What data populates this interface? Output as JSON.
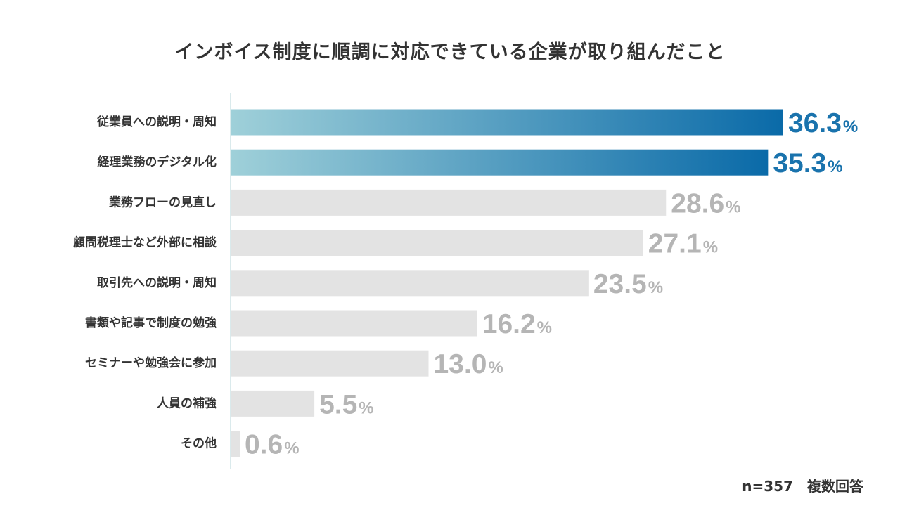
{
  "chart_data": {
    "type": "bar",
    "orientation": "horizontal",
    "title": "インボイス制度に順調に対応できている企業が取り組んだこと",
    "categories": [
      "従業員への説明・周知",
      "経理業務のデジタル化",
      "業務フローの見直し",
      "顧問税理士など外部に相談",
      "取引先への説明・周知",
      "書類や記事で制度の勉強",
      "セミナーや勉強会に参加",
      "人員の補強",
      "その他"
    ],
    "values": [
      36.3,
      35.3,
      28.6,
      27.1,
      23.5,
      16.2,
      13.0,
      5.5,
      0.6
    ],
    "value_labels": [
      "36.3",
      "35.3",
      "28.6",
      "27.1",
      "23.5",
      "16.2",
      "13.0",
      "5.5",
      "0.6"
    ],
    "value_suffix": "%",
    "highlighted": [
      true,
      true,
      false,
      false,
      false,
      false,
      false,
      false,
      false
    ],
    "xlim": [
      0,
      36.3
    ],
    "xlabel": "",
    "ylabel": "",
    "grid": false,
    "legend": "none",
    "colors": {
      "highlight_start": "#9fd0d9",
      "highlight_end": "#0a6aa8",
      "highlight_text": "#1a73ad",
      "normal_bar": "#e3e3e3",
      "normal_text": "#b5b5b5",
      "axis": "#cde3e6"
    }
  },
  "footnote": "n=357　複数回答"
}
